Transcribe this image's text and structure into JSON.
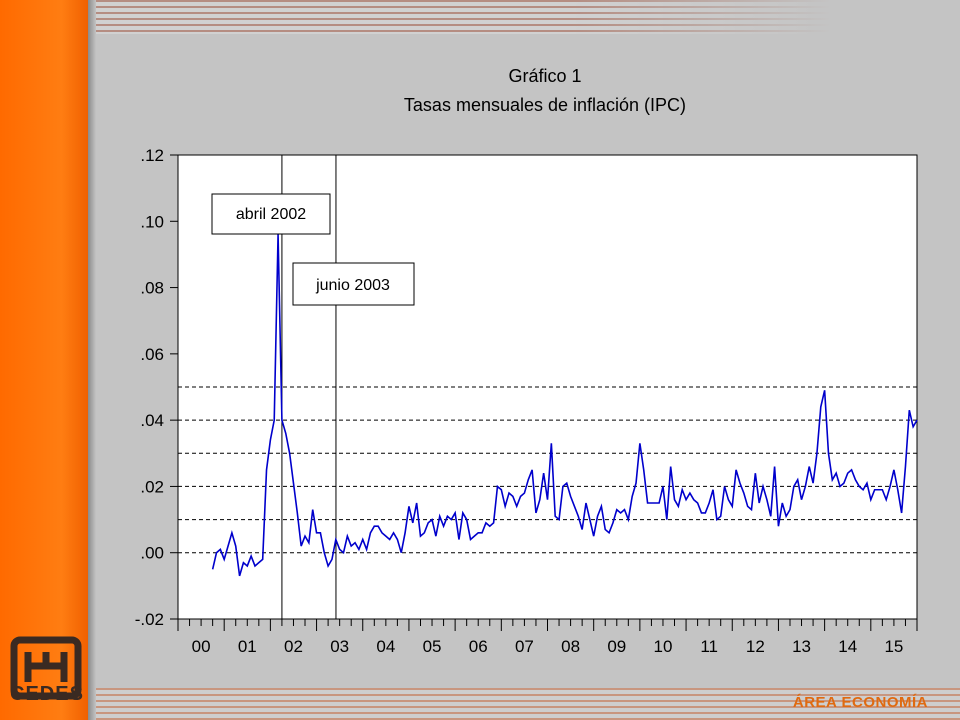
{
  "branding": {
    "logo_text": "CEDES",
    "area_label": "ÁREA ECONOMÍA",
    "accent_color": "#ff6a00"
  },
  "chart_data": {
    "type": "line",
    "title": "Gráfico 1",
    "subtitle": "Tasas mensuales de inflación (IPC)",
    "xlabel": "",
    "ylabel": "",
    "ylim": [
      -0.02,
      0.12
    ],
    "xlim": [
      2000.0,
      2016.0
    ],
    "yticks": [
      ".12",
      ".10",
      ".08",
      ".06",
      ".04",
      ".02",
      ".00",
      "-.02"
    ],
    "ytick_values": [
      0.12,
      0.1,
      0.08,
      0.06,
      0.04,
      0.02,
      0.0,
      -0.02
    ],
    "xticks": [
      "00",
      "01",
      "02",
      "03",
      "04",
      "05",
      "06",
      "07",
      "08",
      "09",
      "10",
      "11",
      "12",
      "13",
      "14",
      "15"
    ],
    "reference_lines": [
      0.05,
      0.04,
      0.03,
      0.02,
      0.01,
      0.0
    ],
    "vertical_markers": [
      {
        "x": 2002.25,
        "label": "abril 2002"
      },
      {
        "x": 2003.42,
        "label": "junio 2003"
      }
    ],
    "line_color": "#0000cc",
    "grid": false,
    "series": [
      {
        "values": [
          -0.005,
          0.0,
          0.001,
          -0.002,
          0.002,
          0.006,
          0.002,
          -0.007,
          -0.003,
          -0.004,
          -0.001,
          -0.004,
          -0.003,
          -0.002,
          0.025,
          0.034,
          0.04,
          0.096,
          0.04,
          0.036,
          0.03,
          0.021,
          0.012,
          0.002,
          0.005,
          0.003,
          0.013,
          0.006,
          0.006,
          0.0,
          -0.004,
          -0.002,
          0.004,
          0.001,
          0.0,
          0.005,
          0.002,
          0.003,
          0.001,
          0.004,
          0.001,
          0.006,
          0.008,
          0.008,
          0.006,
          0.005,
          0.004,
          0.006,
          0.004,
          0.0,
          0.006,
          0.014,
          0.009,
          0.015,
          0.005,
          0.006,
          0.009,
          0.01,
          0.005,
          0.011,
          0.008,
          0.011,
          0.01,
          0.012,
          0.004,
          0.012,
          0.01,
          0.004,
          0.005,
          0.006,
          0.006,
          0.009,
          0.008,
          0.009,
          0.02,
          0.019,
          0.014,
          0.018,
          0.017,
          0.014,
          0.017,
          0.018,
          0.022,
          0.025,
          0.012,
          0.016,
          0.024,
          0.016,
          0.033,
          0.011,
          0.01,
          0.02,
          0.021,
          0.017,
          0.014,
          0.011,
          0.007,
          0.015,
          0.01,
          0.005,
          0.011,
          0.014,
          0.007,
          0.006,
          0.009,
          0.013,
          0.012,
          0.013,
          0.01,
          0.017,
          0.021,
          0.033,
          0.025,
          0.015,
          0.015,
          0.015,
          0.015,
          0.02,
          0.01,
          0.026,
          0.016,
          0.014,
          0.019,
          0.016,
          0.018,
          0.016,
          0.015,
          0.012,
          0.012,
          0.015,
          0.019,
          0.01,
          0.011,
          0.02,
          0.016,
          0.014,
          0.025,
          0.021,
          0.018,
          0.014,
          0.013,
          0.024,
          0.015,
          0.02,
          0.016,
          0.011,
          0.026,
          0.008,
          0.015,
          0.011,
          0.013,
          0.02,
          0.022,
          0.016,
          0.02,
          0.026,
          0.021,
          0.03,
          0.044,
          0.049,
          0.03,
          0.022,
          0.024,
          0.02,
          0.021,
          0.024,
          0.025,
          0.022,
          0.02,
          0.019,
          0.021,
          0.016,
          0.019,
          0.019,
          0.019,
          0.016,
          0.02,
          0.025,
          0.019,
          0.012,
          0.026,
          0.043,
          0.038,
          0.04
        ]
      }
    ]
  }
}
